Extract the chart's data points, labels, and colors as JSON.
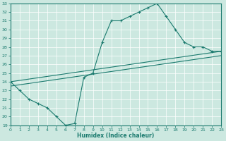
{
  "xlabel": "Humidex (Indice chaleur)",
  "xlim": [
    0,
    23
  ],
  "ylim": [
    19,
    33
  ],
  "xticks": [
    0,
    1,
    2,
    3,
    4,
    5,
    6,
    7,
    8,
    9,
    10,
    11,
    12,
    13,
    14,
    15,
    16,
    17,
    18,
    19,
    20,
    21,
    22,
    23
  ],
  "yticks": [
    19,
    20,
    21,
    22,
    23,
    24,
    25,
    26,
    27,
    28,
    29,
    30,
    31,
    32,
    33
  ],
  "bg_color": "#cce8e0",
  "line_color": "#1a7a6e",
  "grid_color": "#ffffff",
  "line1_x": [
    0,
    1,
    2,
    3,
    4,
    5,
    6,
    7,
    8,
    9,
    10,
    11,
    12,
    13,
    14,
    15,
    16,
    17,
    18,
    19,
    20,
    21,
    22,
    23
  ],
  "line1_y": [
    24,
    23,
    22,
    21.5,
    21,
    20,
    19,
    19.2,
    24.5,
    25,
    28.5,
    31,
    31,
    31.5,
    32,
    32.5,
    33,
    31.5,
    30,
    28.5,
    28,
    28,
    27.5,
    27.5
  ],
  "line2_x": [
    0,
    23
  ],
  "line2_y": [
    24,
    27.5
  ],
  "line3_x": [
    0,
    23
  ],
  "line3_y": [
    24,
    27.5
  ]
}
